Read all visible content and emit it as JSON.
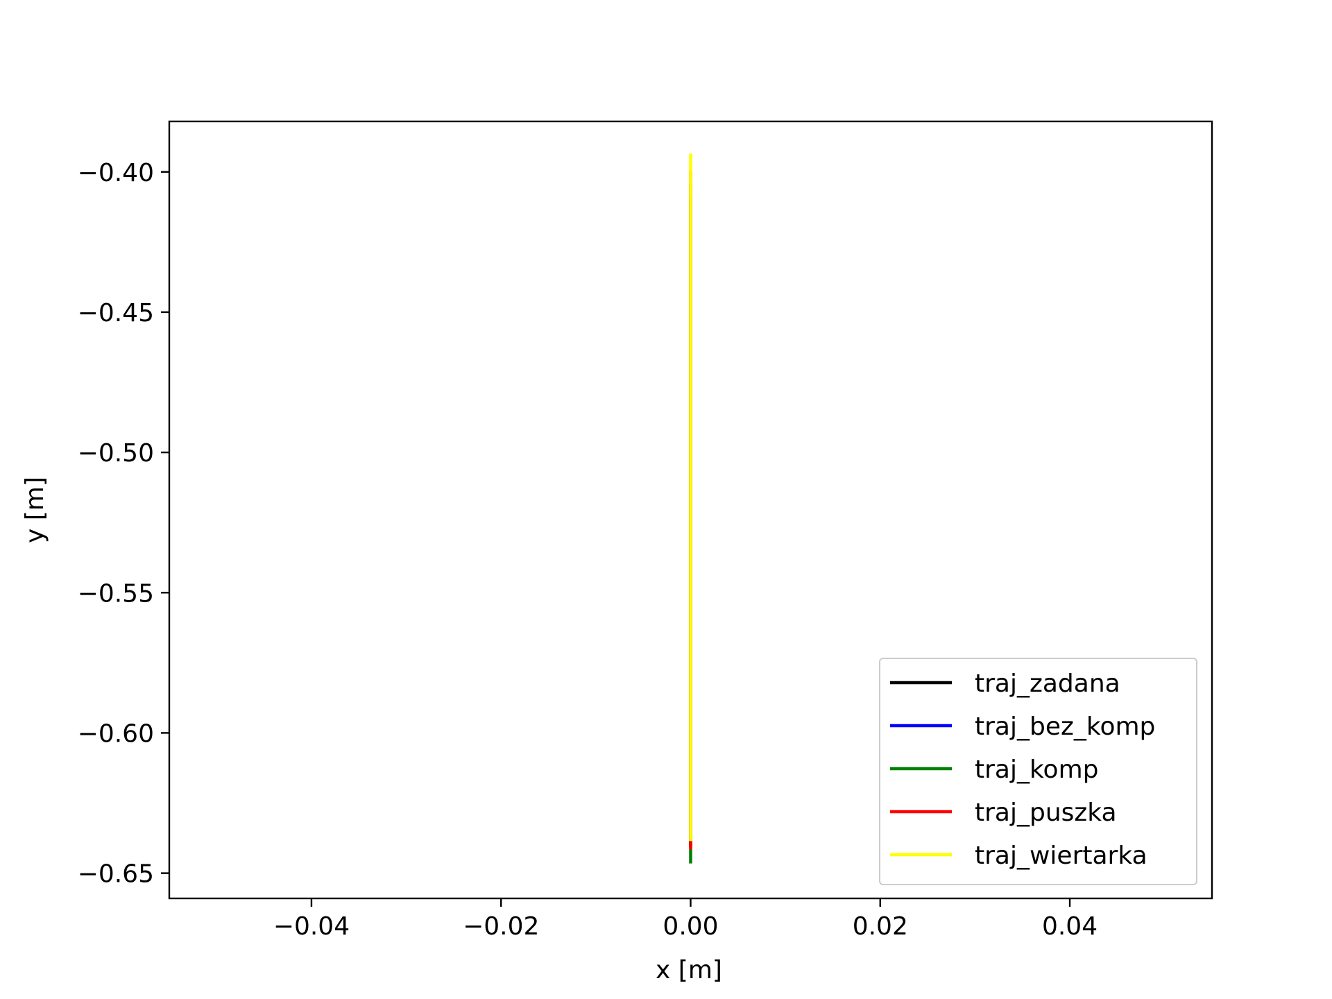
{
  "chart_data": {
    "type": "line",
    "title": "",
    "xlabel": "x [m]",
    "ylabel": "y [m]",
    "xlim": [
      -0.055,
      0.055
    ],
    "ylim": [
      -0.659,
      -0.382
    ],
    "xticks": [
      -0.04,
      -0.02,
      0.0,
      0.02,
      0.04
    ],
    "xtick_labels": [
      "−0.04",
      "−0.02",
      "0.00",
      "0.02",
      "0.04"
    ],
    "yticks": [
      -0.4,
      -0.45,
      -0.5,
      -0.55,
      -0.6,
      -0.65
    ],
    "ytick_labels": [
      "−0.40",
      "−0.45",
      "−0.50",
      "−0.55",
      "−0.60",
      "−0.65"
    ],
    "grid": false,
    "legend_position": "lower-right",
    "series": [
      {
        "name": "traj_zadana",
        "color": "#000000",
        "x": [
          0.0,
          0.0
        ],
        "y": [
          -0.41,
          -0.64
        ]
      },
      {
        "name": "traj_bez_komp",
        "color": "#0000ff",
        "x": [
          0.0,
          0.0
        ],
        "y": [
          -0.41,
          -0.64
        ]
      },
      {
        "name": "traj_komp",
        "color": "#008000",
        "x": [
          0.0,
          0.0
        ],
        "y": [
          -0.405,
          -0.646
        ]
      },
      {
        "name": "traj_puszka",
        "color": "#ff0000",
        "x": [
          0.0,
          0.0
        ],
        "y": [
          -0.4,
          -0.641
        ]
      },
      {
        "name": "traj_wiertarka",
        "color": "#ffff00",
        "x": [
          0.0,
          0.0
        ],
        "y": [
          -0.394,
          -0.638
        ]
      }
    ]
  }
}
